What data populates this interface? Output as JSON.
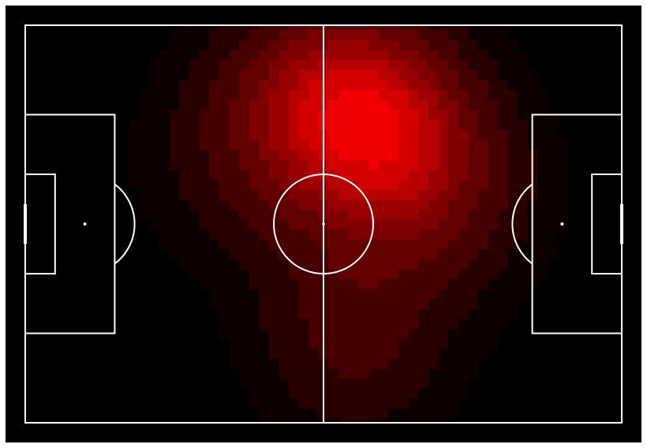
{
  "colors": {
    "background": "#000000",
    "lines": "#ffffff",
    "heat_low": "#0d0000",
    "heat_high": "#f00000"
  },
  "chart_data": {
    "type": "heatmap",
    "title": "",
    "xlabel": "",
    "ylabel": "",
    "pitch": {
      "units": "m",
      "length": 120,
      "width": 80,
      "penalty_area": {
        "depth": 18,
        "width": 44
      },
      "six_yard_box": {
        "depth": 6,
        "width": 20
      },
      "penalty_spot_distance": 12,
      "centre_circle_radius": 10,
      "goal_width": 8
    },
    "levels": [
      0.06,
      0.14,
      0.24,
      0.36,
      0.48,
      0.58,
      0.68,
      0.78,
      0.9
    ],
    "density_centers": [
      {
        "x": 68,
        "y": 20,
        "intensity": 1.0
      },
      {
        "x": 78,
        "y": 28,
        "intensity": 0.55
      },
      {
        "x": 62,
        "y": 10,
        "intensity": 0.5
      },
      {
        "x": 66,
        "y": 55,
        "intensity": 0.35
      },
      {
        "x": 66,
        "y": 70,
        "intensity": 0.25
      },
      {
        "x": 48,
        "y": 18,
        "intensity": 0.28
      },
      {
        "x": 40,
        "y": 32,
        "intensity": 0.18
      },
      {
        "x": 88,
        "y": 38,
        "intensity": 0.2
      }
    ]
  }
}
